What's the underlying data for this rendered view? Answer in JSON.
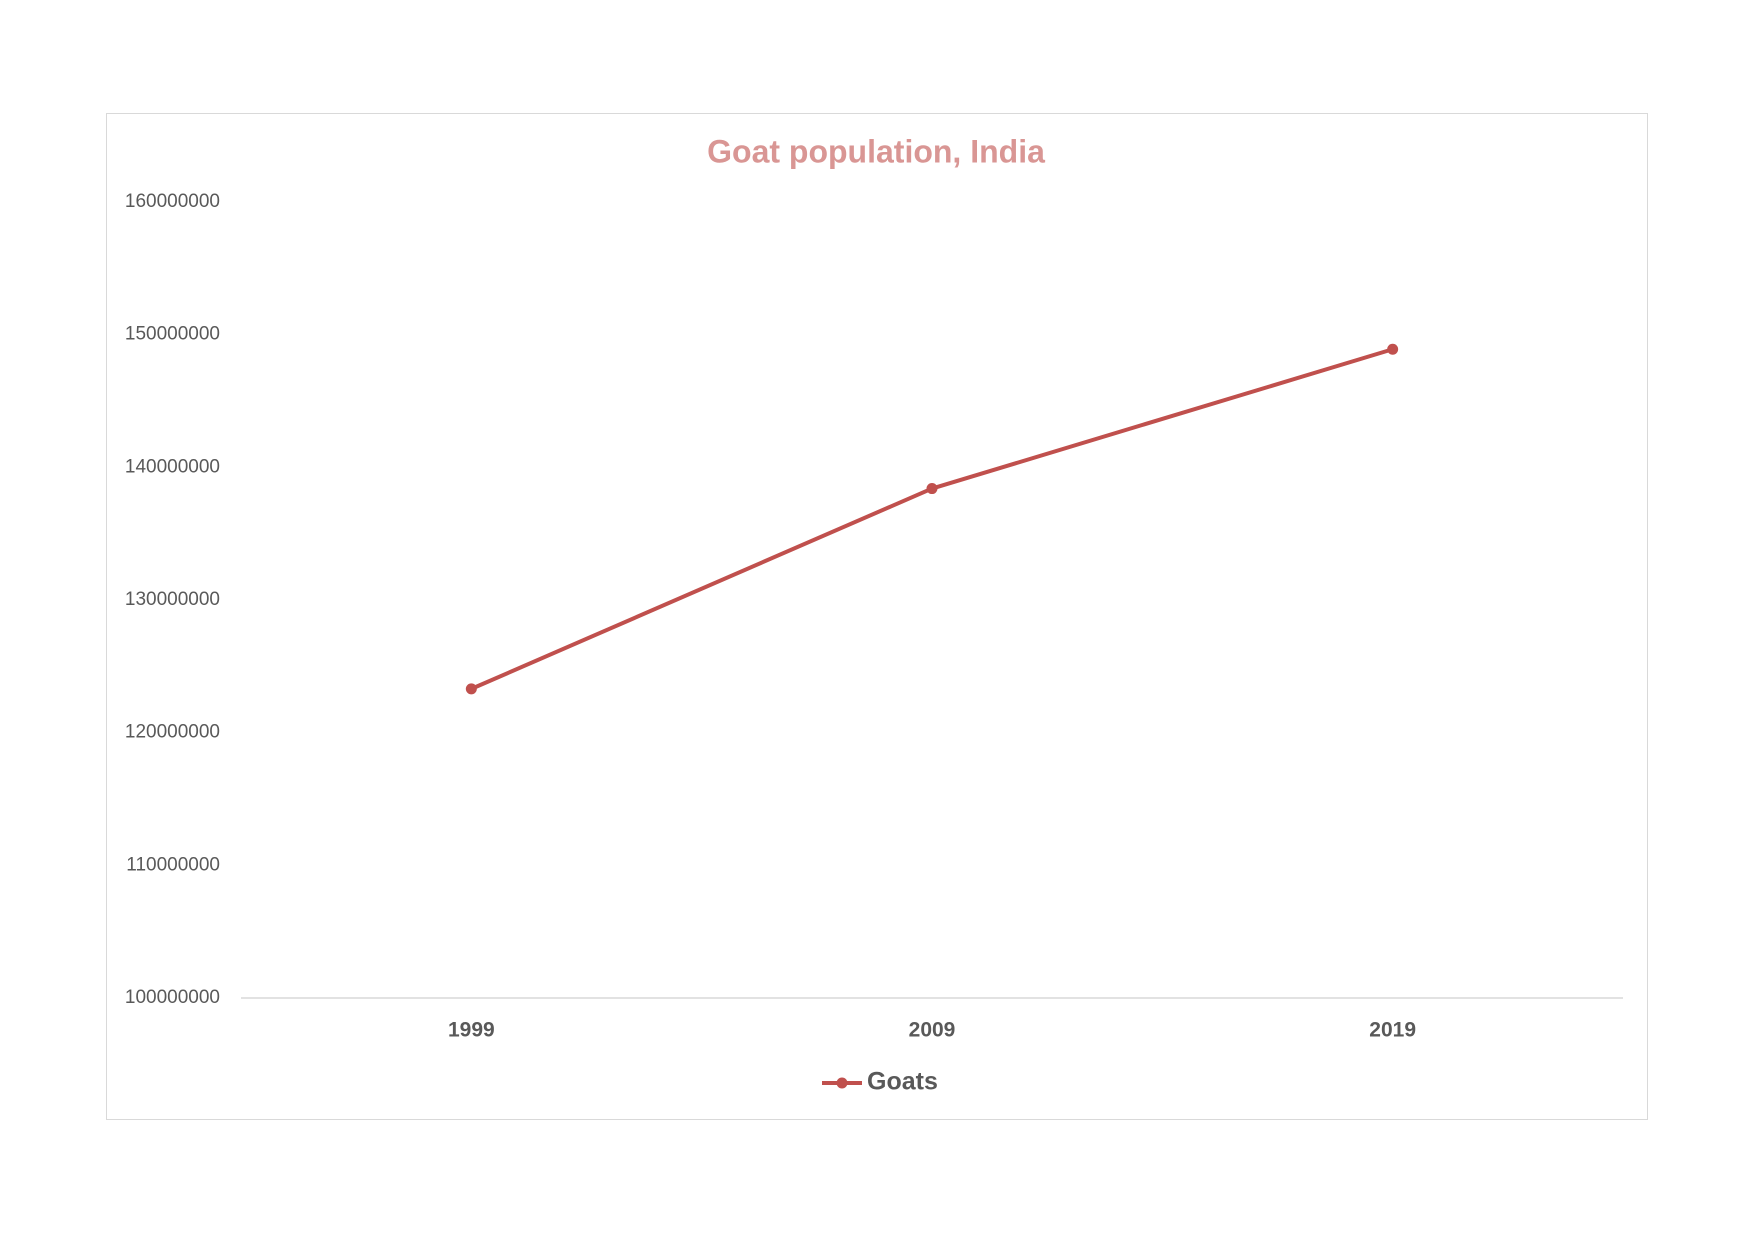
{
  "chart_data": {
    "type": "line",
    "title": "Goat population, India",
    "categories": [
      "1999",
      "2009",
      "2019"
    ],
    "series": [
      {
        "name": "Goats",
        "color": "#c0504d",
        "values": [
          123300000,
          138400000,
          148900000
        ]
      }
    ],
    "ylim": [
      100000000,
      160000000
    ],
    "yticks": [
      100000000,
      110000000,
      120000000,
      130000000,
      140000000,
      150000000,
      160000000
    ],
    "grid": false,
    "legend": "bottom"
  }
}
